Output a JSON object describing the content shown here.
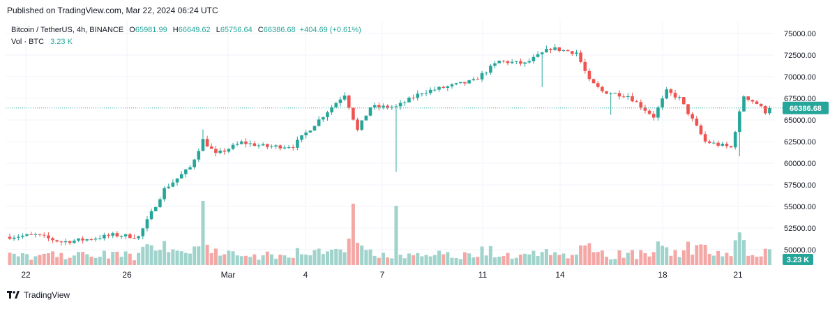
{
  "header": {
    "published": "Published on TradingView.com, Mar 22, 2024 06:24 UTC"
  },
  "legend": {
    "symbol": "Bitcoin / TetherUS, 4h, BINANCE",
    "open_key": "O",
    "open": "65981.99",
    "high_key": "H",
    "high": "66649.62",
    "low_key": "L",
    "low": "65756.64",
    "close_key": "C",
    "close": "66386.68",
    "change": "+404.69 (+0.61%)",
    "vol_label": "Vol · BTC",
    "vol_value": "3.23 K"
  },
  "price_axis": {
    "ticks": [
      "75000.00",
      "72500.00",
      "70000.00",
      "67500.00",
      "65000.00",
      "62500.00",
      "60000.00",
      "57500.00",
      "55000.00",
      "52500.00",
      "50000.00"
    ],
    "last_price_label": "66386.68",
    "volume_label": "3.23 K"
  },
  "time_axis": {
    "ticks": [
      "22",
      "26",
      "Mar",
      "4",
      "7",
      "11",
      "14",
      "18",
      "21"
    ]
  },
  "brand": {
    "name": "TradingView"
  },
  "colors": {
    "up": "#26a69a",
    "down": "#ef5350",
    "up_volume": "#9fd3cb",
    "down_volume": "#f3a8a6",
    "grid": "#f0f3fa",
    "last_price": "#26a69a"
  },
  "chart_data": {
    "type": "candlestick",
    "symbol": "Bitcoin / TetherUS",
    "interval": "4h",
    "exchange": "BINANCE",
    "y_unit": "USDT",
    "ylim": [
      48000,
      76000
    ],
    "grid": true,
    "x_ticks": [
      "22",
      "26",
      "Mar",
      "4",
      "7",
      "11",
      "14",
      "18",
      "21"
    ],
    "last_close": 66386.68,
    "waypoints": [
      {
        "t": "Feb 21",
        "price": 51500
      },
      {
        "t": "Feb 22",
        "price": 51700
      },
      {
        "t": "Feb 23",
        "price": 50900
      },
      {
        "t": "Feb 24",
        "price": 51200
      },
      {
        "t": "Feb 25",
        "price": 51700
      },
      {
        "t": "Feb 26",
        "price": 51500
      },
      {
        "t": "Feb 27",
        "price": 57000
      },
      {
        "t": "Feb 28",
        "price": 59500
      },
      {
        "t": "Feb 28",
        "price": 62700
      },
      {
        "t": "Feb 29",
        "price": 61000
      },
      {
        "t": "Mar 1",
        "price": 62400
      },
      {
        "t": "Mar 2",
        "price": 61900
      },
      {
        "t": "Mar 3",
        "price": 62000
      },
      {
        "t": "Mar 4",
        "price": 65000
      },
      {
        "t": "Mar 5",
        "price": 68000
      },
      {
        "t": "Mar 5",
        "price": 63800
      },
      {
        "t": "Mar 6",
        "price": 66500
      },
      {
        "t": "Mar 7",
        "price": 66500
      },
      {
        "t": "Mar 8",
        "price": 68200
      },
      {
        "t": "Mar 10",
        "price": 69500
      },
      {
        "t": "Mar 11",
        "price": 71800
      },
      {
        "t": "Mar 12",
        "price": 71500
      },
      {
        "t": "Mar 13",
        "price": 73300
      },
      {
        "t": "Mar 14",
        "price": 72800
      },
      {
        "t": "Mar 14",
        "price": 69500
      },
      {
        "t": "Mar 15",
        "price": 68300
      },
      {
        "t": "Mar 16",
        "price": 67800
      },
      {
        "t": "Mar 17",
        "price": 65400
      },
      {
        "t": "Mar 17",
        "price": 68300
      },
      {
        "t": "Mar 18",
        "price": 67500
      },
      {
        "t": "Mar 19",
        "price": 62500
      },
      {
        "t": "Mar 20",
        "price": 61800
      },
      {
        "t": "Mar 20",
        "price": 67800
      },
      {
        "t": "Mar 21",
        "price": 66900
      },
      {
        "t": "Mar 21",
        "price": 65500
      },
      {
        "t": "Mar 22",
        "price": 66386.68
      }
    ]
  }
}
